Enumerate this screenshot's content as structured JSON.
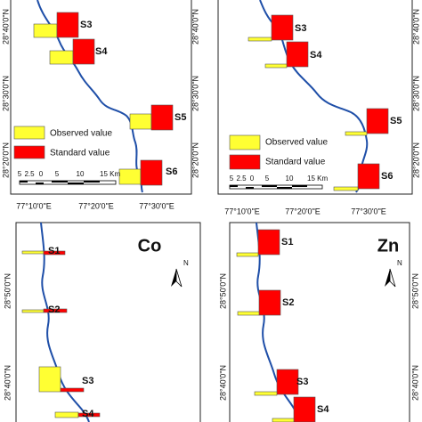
{
  "top_left": {
    "stations": [
      "S3",
      "S4",
      "S5",
      "S6"
    ],
    "legend": [
      "Observed value",
      "Standard value"
    ],
    "scale": [
      "5",
      "2.5",
      "0",
      "5",
      "10",
      "15 Km"
    ],
    "lat": [
      "28°40'0\"N",
      "28°30'0\"N",
      "28°20'0\"N"
    ],
    "lat_right": [
      "28°40'0\"N",
      "28°30'0\"N",
      "28°20'0\"N"
    ],
    "lon": [
      "77°10'0\"E",
      "77°20'0\"E",
      "77°30'0\"E"
    ]
  },
  "top_right": {
    "stations": [
      "S3",
      "S4",
      "S5",
      "S6"
    ],
    "legend": [
      "Observed value",
      "Standard value"
    ],
    "scale": [
      "5",
      "2.5",
      "0",
      "5",
      "10",
      "15 Km"
    ],
    "lat_right": [
      "28°40'0\"N",
      "28°30'0\"N",
      "28°20'0\"N"
    ],
    "lon": [
      "77°10'0\"E",
      "77°20'0\"E",
      "77°30'0\"E"
    ]
  },
  "bottom_left": {
    "title": "Co",
    "north": "N",
    "stations": [
      "S1",
      "S2",
      "S3",
      "S4"
    ],
    "lat": [
      "28°50'0\"N",
      "28°40'0\"N"
    ]
  },
  "bottom_right": {
    "title": "Zn",
    "north": "N",
    "stations": [
      "S1",
      "S2",
      "S3",
      "S4"
    ],
    "lat": [
      "28°50'0\"N",
      "28°40'0\"N"
    ],
    "lat_right": [
      "28°50'0\"N",
      "28°40'0\"N"
    ]
  }
}
